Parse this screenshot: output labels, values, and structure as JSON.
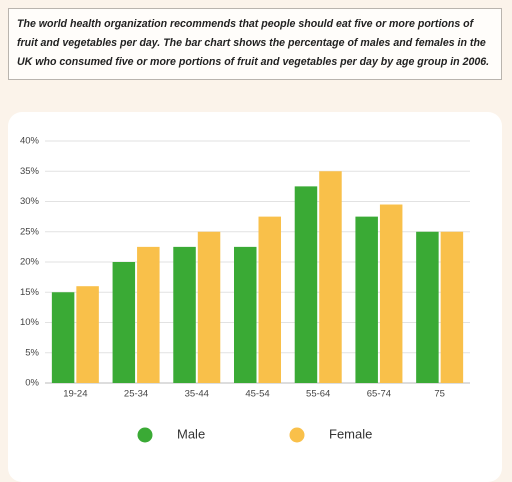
{
  "description": "The world health organization recommends that people should eat five or more portions of fruit and vegetables per day. The bar chart shows the percentage of males and females in the UK who consumed five or more portions of fruit and vegetables per day by age group in 2006.",
  "chart_data": {
    "type": "bar",
    "categories": [
      "19-24",
      "25-34",
      "35-44",
      "45-54",
      "55-64",
      "65-74",
      "75"
    ],
    "series": [
      {
        "name": "Male",
        "color": "#3aaa35",
        "values": [
          15,
          20,
          22.5,
          22.5,
          32.5,
          27.5,
          25
        ]
      },
      {
        "name": "Female",
        "color": "#f9c04a",
        "values": [
          16,
          22.5,
          25,
          27.5,
          35,
          29.5,
          25
        ]
      }
    ],
    "ylim": [
      0,
      40
    ],
    "yticks": [
      {
        "value": 0,
        "label": "0%"
      },
      {
        "value": 5,
        "label": "5%"
      },
      {
        "value": 10,
        "label": "10%"
      },
      {
        "value": 15,
        "label": "15%"
      },
      {
        "value": 20,
        "label": "20%"
      },
      {
        "value": 25,
        "label": "25%"
      },
      {
        "value": 30,
        "label": "30%"
      },
      {
        "value": 35,
        "label": "35%"
      },
      {
        "value": 40,
        "label": "40%"
      }
    ],
    "grid": true,
    "legend": "bottom"
  }
}
